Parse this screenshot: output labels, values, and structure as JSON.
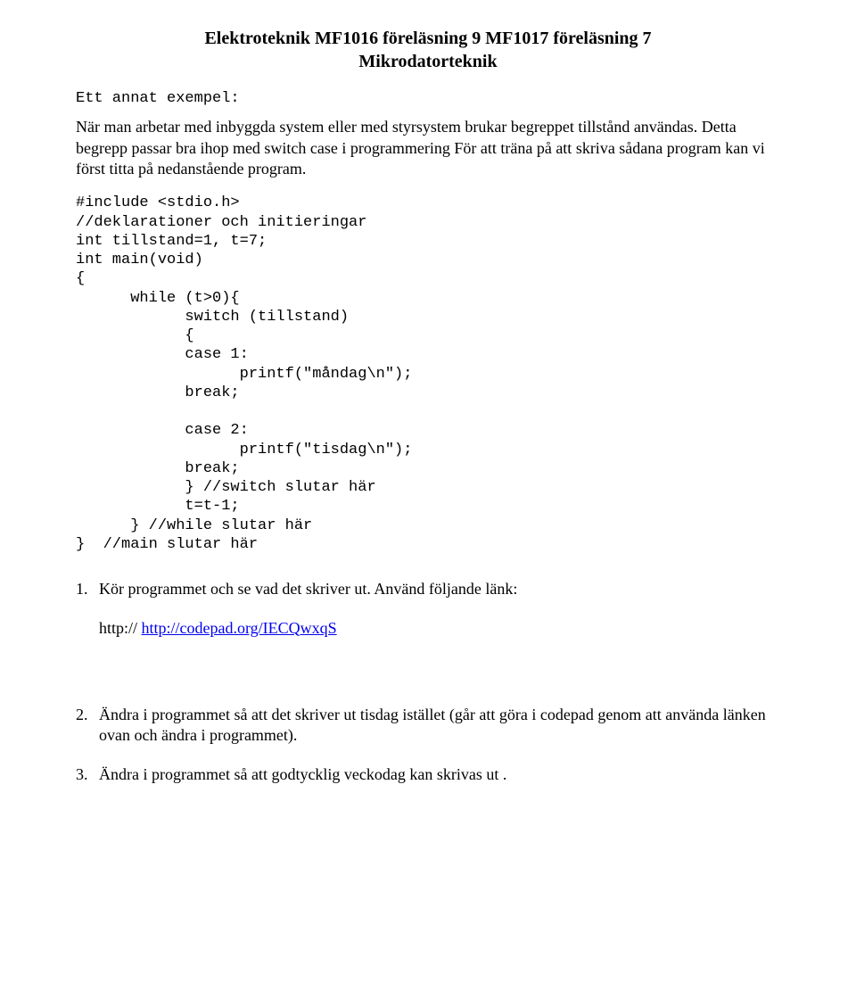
{
  "title": {
    "line1": "Elektroteknik MF1016 föreläsning 9  MF1017 föreläsning 7",
    "line2": "Mikrodatorteknik"
  },
  "section_label": "Ett annat exempel:",
  "intro_para": "När man arbetar med inbyggda system eller med styrsystem brukar begreppet tillstånd användas. Detta begrepp passar bra ihop med switch case i programmering  För att träna på att skriva sådana program kan vi först titta på nedanstående program.",
  "code": "#include <stdio.h>\n//deklarationer och initieringar\nint tillstand=1, t=7;\nint main(void)\n{\n      while (t>0){\n            switch (tillstand)\n            {\n            case 1:\n                  printf(\"måndag\\n\");\n            break;\n\n            case 2:\n                  printf(\"tisdag\\n\");\n            break;\n            } //switch slutar här\n            t=t-1;\n      } //while slutar här\n}  //main slutar här",
  "q1": {
    "num": "1.",
    "text": "Kör programmet och se vad det skriver ut. Använd följande länk:",
    "link_prefix": "http:// ",
    "link_text": "http://codepad.org/IECQwxqS"
  },
  "q2": {
    "num": "2.",
    "text": "Ändra i programmet så att det skriver ut tisdag istället (går att göra i codepad genom att använda länken ovan och ändra i programmet)."
  },
  "q3": {
    "num": "3.",
    "text": "Ändra i programmet så att godtycklig veckodag kan skrivas ut ."
  }
}
